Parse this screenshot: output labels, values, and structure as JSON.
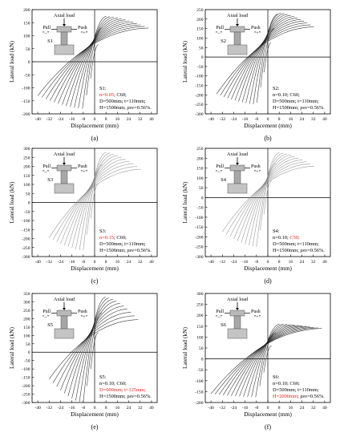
{
  "figure": {
    "panels": [
      {
        "id": "a",
        "caption": "(a)",
        "xlabel": "Displacement (mm)",
        "ylabel": "Lateral load (kN)",
        "specimen": "S1",
        "inset": {
          "axial": "Axial load",
          "pull": "Pull",
          "push": "Push",
          "pull_sign": "“–”",
          "push_sign": "“+”"
        },
        "info": [
          {
            "segments": [
              {
                "text": "S1:",
                "red": false
              }
            ]
          },
          {
            "segments": [
              {
                "text": "n=0.05",
                "red": true
              },
              {
                "text": "; C60;",
                "red": false
              }
            ]
          },
          {
            "segments": [
              {
                "text": "D=500mm; t=110mm;",
                "red": false
              }
            ]
          },
          {
            "segments": [
              {
                "text": "H=1500mm; ρsv=0.56%.",
                "red": false
              }
            ]
          }
        ]
      },
      {
        "id": "b",
        "caption": "(b)",
        "xlabel": "Displacement (mm)",
        "ylabel": "Lateral load (kN)",
        "specimen": "S2",
        "inset": {
          "axial": "Axial load",
          "pull": "Pull",
          "push": "Push",
          "pull_sign": "“–”",
          "push_sign": "“+”"
        },
        "info": [
          {
            "segments": [
              {
                "text": "S2:",
                "red": false
              }
            ]
          },
          {
            "segments": [
              {
                "text": "n=0.10; C60;",
                "red": false
              }
            ]
          },
          {
            "segments": [
              {
                "text": "D=500mm; t=110mm;",
                "red": false
              }
            ]
          },
          {
            "segments": [
              {
                "text": "H=1500mm; ρsv=0.56%.",
                "red": false
              }
            ]
          }
        ]
      },
      {
        "id": "c",
        "caption": "(c)",
        "xlabel": "Displacement (mm)",
        "ylabel": "Lateral load (kN)",
        "specimen": "S3",
        "inset": {
          "axial": "Axial load",
          "pull": "Pull",
          "push": "Push",
          "pull_sign": "“–”",
          "push_sign": "“+”"
        },
        "info": [
          {
            "segments": [
              {
                "text": "S3:",
                "red": false
              }
            ]
          },
          {
            "segments": [
              {
                "text": "n=0.15",
                "red": true
              },
              {
                "text": "; C60;",
                "red": false
              }
            ]
          },
          {
            "segments": [
              {
                "text": "D=500mm; t=110mm;",
                "red": false
              }
            ]
          },
          {
            "segments": [
              {
                "text": "H=1500mm; ρsv=0.56%.",
                "red": false
              }
            ]
          }
        ]
      },
      {
        "id": "d",
        "caption": "(d)",
        "xlabel": "Displacement (mm)",
        "ylabel": "Lateral load (kN)",
        "specimen": "S4",
        "inset": {
          "axial": "Axial load",
          "pull": "Pull",
          "push": "Push",
          "pull_sign": "“–”",
          "push_sign": "“+”"
        },
        "info": [
          {
            "segments": [
              {
                "text": "S4:",
                "red": false
              }
            ]
          },
          {
            "segments": [
              {
                "text": "n=0.10; ",
                "red": false
              },
              {
                "text": "C50;",
                "red": true
              }
            ]
          },
          {
            "segments": [
              {
                "text": "D=500mm; t=110mm;",
                "red": false
              }
            ]
          },
          {
            "segments": [
              {
                "text": "H=1500mm; ρsv=0.56%.",
                "red": false
              }
            ]
          }
        ]
      },
      {
        "id": "e",
        "caption": "(e)",
        "xlabel": "Displacement (mm)",
        "ylabel": "Lateral load (kN)",
        "specimen": "S5",
        "inset": {
          "axial": "Axial load",
          "pull": "Pull",
          "push": "Push",
          "pull_sign": "“–”",
          "push_sign": "“+”"
        },
        "info": [
          {
            "segments": [
              {
                "text": "S5:",
                "red": false
              }
            ]
          },
          {
            "segments": [
              {
                "text": "n=0.10; C60;",
                "red": false
              }
            ]
          },
          {
            "segments": [
              {
                "text": "D=600mm; t=125mm;",
                "red": true
              }
            ]
          },
          {
            "segments": [
              {
                "text": "H=1500mm; ρsv=0.56%.",
                "red": false
              }
            ]
          }
        ]
      },
      {
        "id": "f",
        "caption": "(f)",
        "xlabel": "Displacement (mm)",
        "ylabel": "Lateral load (kN)",
        "specimen": "S6",
        "inset": {
          "axial": "Axial load",
          "pull": "Pull",
          "push": "Push",
          "pull_sign": "“–”",
          "push_sign": "“+”"
        },
        "info": [
          {
            "segments": [
              {
                "text": "S6:",
                "red": false
              }
            ]
          },
          {
            "segments": [
              {
                "text": "n=0.10; C60;",
                "red": false
              }
            ]
          },
          {
            "segments": [
              {
                "text": "D=500mm; t=110mm;",
                "red": false
              }
            ]
          },
          {
            "segments": [
              {
                "text": "H=2000mm",
                "red": true
              },
              {
                "text": "; ρsv=0.56%.",
                "red": false
              }
            ]
          }
        ]
      }
    ]
  },
  "colors": {
    "highlight": "#e8211c",
    "axis": "#000000",
    "curve_dark": "#1a1a1a",
    "curve_gray": "#8a8a8a"
  },
  "chart_data": [
    {
      "type": "line",
      "panel": "a",
      "xlim": [
        -44,
        44
      ],
      "ylim": [
        -200,
        200
      ],
      "xticks": [
        -40,
        -32,
        -24,
        -16,
        -8,
        0,
        8,
        16,
        24,
        32,
        40
      ],
      "yticks": [
        -200,
        -150,
        -100,
        -50,
        0,
        50,
        100,
        150,
        200
      ],
      "xlabel": "Displacement (mm)",
      "ylabel": "Lateral load (kN)",
      "hysteresis": {
        "peak_push": 175,
        "peak_pull": -180,
        "max_disp_push": 42,
        "max_disp_pull": -40,
        "final_push_load": 130,
        "final_pull_load": -130,
        "cycles": 14
      },
      "curve_color": "dark"
    },
    {
      "type": "line",
      "panel": "b",
      "xlim": [
        -44,
        44
      ],
      "ylim": [
        -300,
        250
      ],
      "xticks": [
        -40,
        -32,
        -24,
        -16,
        -8,
        0,
        8,
        16,
        24,
        32,
        40
      ],
      "yticks": [
        -300,
        -250,
        -200,
        -150,
        -100,
        -50,
        0,
        50,
        100,
        150,
        200,
        250
      ],
      "xlabel": "Displacement (mm)",
      "ylabel": "Lateral load (kN)",
      "hysteresis": {
        "peak_push": 235,
        "peak_pull": -250,
        "max_disp_push": 36,
        "max_disp_pull": -36,
        "final_push_load": 160,
        "final_pull_load": -195,
        "cycles": 14
      },
      "curve_color": "dark"
    },
    {
      "type": "line",
      "panel": "c",
      "xlim": [
        -44,
        44
      ],
      "ylim": [
        -300,
        300
      ],
      "xticks": [
        -40,
        -32,
        -24,
        -16,
        -8,
        0,
        8,
        16,
        24,
        32,
        40
      ],
      "yticks": [
        -300,
        -250,
        -200,
        -150,
        -100,
        -50,
        0,
        50,
        100,
        150,
        200,
        250,
        300
      ],
      "xlabel": "Displacement (mm)",
      "ylabel": "Lateral load (kN)",
      "hysteresis": {
        "peak_push": 280,
        "peak_pull": -265,
        "max_disp_push": 36,
        "max_disp_pull": -32,
        "final_push_load": 185,
        "final_pull_load": -195,
        "cycles": 12
      },
      "curve_color": "gray"
    },
    {
      "type": "line",
      "panel": "d",
      "xlim": [
        -44,
        44
      ],
      "ylim": [
        -300,
        250
      ],
      "xticks": [
        -40,
        -32,
        -24,
        -16,
        -8,
        0,
        8,
        16,
        24,
        32,
        40
      ],
      "yticks": [
        -300,
        -250,
        -200,
        -150,
        -100,
        -50,
        0,
        50,
        100,
        150,
        200,
        250
      ],
      "xlabel": "Displacement (mm)",
      "ylabel": "Lateral load (kN)",
      "hysteresis": {
        "peak_push": 230,
        "peak_pull": -250,
        "max_disp_push": 36,
        "max_disp_pull": -32,
        "final_push_load": 160,
        "final_pull_load": -175,
        "cycles": 12
      },
      "curve_color": "gray"
    },
    {
      "type": "line",
      "panel": "e",
      "xlim": [
        -44,
        44
      ],
      "ylim": [
        -300,
        350
      ],
      "xticks": [
        -40,
        -32,
        -24,
        -16,
        -8,
        0,
        8,
        16,
        24,
        32,
        40
      ],
      "yticks": [
        -300,
        -250,
        -200,
        -150,
        -100,
        -50,
        0,
        50,
        100,
        150,
        200,
        250,
        300,
        350
      ],
      "xlabel": "Displacement (mm)",
      "ylabel": "Lateral load (kN)",
      "hysteresis": {
        "peak_push": 330,
        "peak_pull": -300,
        "max_disp_push": 34,
        "max_disp_pull": -32,
        "final_push_load": 195,
        "final_pull_load": -160,
        "cycles": 12
      },
      "curve_color": "dark"
    },
    {
      "type": "line",
      "panel": "f",
      "xlim": [
        -44,
        44
      ],
      "ylim": [
        -200,
        300
      ],
      "xticks": [
        -40,
        -32,
        -24,
        -16,
        -8,
        0,
        8,
        16,
        24,
        32,
        40
      ],
      "yticks": [
        -200,
        -150,
        -100,
        -50,
        0,
        50,
        100,
        150,
        200,
        250,
        300
      ],
      "xlabel": "Displacement (mm)",
      "ylabel": "Lateral load (kN)",
      "hysteresis": {
        "peak_push": 160,
        "peak_pull": -175,
        "max_disp_push": 42,
        "max_disp_pull": -40,
        "final_push_load": 140,
        "final_pull_load": -160,
        "cycles": 14
      },
      "curve_color": "dark"
    }
  ]
}
